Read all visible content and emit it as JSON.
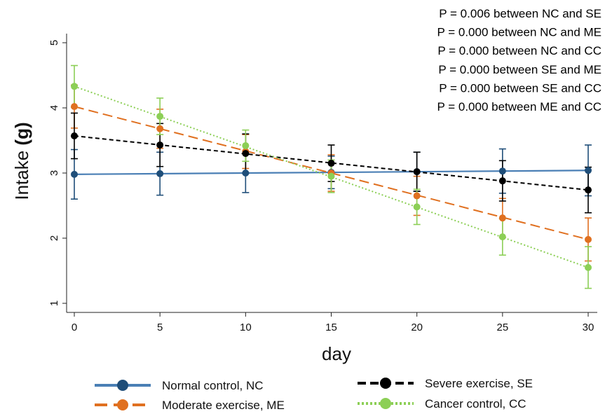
{
  "chart_data": {
    "type": "line",
    "xlabel": "day",
    "ylabel_main": "Intake",
    "ylabel_unit": "(g)",
    "xlim": [
      0,
      30
    ],
    "ylim": [
      1,
      5
    ],
    "x_ticks": [
      "0",
      "5",
      "10",
      "15",
      "20",
      "25",
      "30"
    ],
    "y_ticks": [
      "1",
      "2",
      "3",
      "4",
      "5"
    ],
    "grid": false,
    "legend_position": "bottom",
    "annotations": [
      "P = 0.006 between NC and SE",
      "P = 0.000 between NC and ME",
      "P = 0.000 between NC and CC",
      "P = 0.000 between SE and ME",
      "P = 0.000 between SE and CC",
      "P = 0.000 between ME and CC"
    ],
    "x": [
      0,
      5,
      10,
      15,
      20,
      25,
      30
    ],
    "series": [
      {
        "name": "Normal control, NC",
        "color": "#1f4e79",
        "fit_color": "#4a7fb5",
        "dash": "solid",
        "values": [
          2.98,
          2.99,
          3.0,
          3.01,
          3.02,
          3.03,
          3.04
        ],
        "error": [
          0.38,
          0.33,
          0.3,
          0.25,
          0.3,
          0.34,
          0.39
        ],
        "fit": [
          2.98,
          3.04
        ]
      },
      {
        "name": "Moderate exercise, ME",
        "color": "#e07020",
        "fit_color": "#e07020",
        "dash": "long-dash",
        "values": [
          4.02,
          3.68,
          3.33,
          3.0,
          2.65,
          2.31,
          1.98
        ],
        "error": [
          0.33,
          0.3,
          0.26,
          0.28,
          0.3,
          0.3,
          0.33
        ],
        "fit": [
          4.02,
          1.98
        ]
      },
      {
        "name": "Severe exercise, SE",
        "color": "#000000",
        "fit_color": "#000000",
        "dash": "short-dash",
        "values": [
          3.57,
          3.43,
          3.3,
          3.15,
          3.02,
          2.88,
          2.74
        ],
        "error": [
          0.35,
          0.33,
          0.3,
          0.28,
          0.3,
          0.31,
          0.35
        ],
        "fit": [
          3.57,
          2.74
        ]
      },
      {
        "name": "Cancer control, CC",
        "color": "#8ccf56",
        "fit_color": "#8ccf56",
        "dash": "dotted",
        "values": [
          4.33,
          3.87,
          3.42,
          2.95,
          2.48,
          2.02,
          1.55
        ],
        "error": [
          0.32,
          0.28,
          0.24,
          0.25,
          0.27,
          0.28,
          0.32
        ],
        "fit": [
          4.33,
          1.55
        ]
      }
    ]
  }
}
